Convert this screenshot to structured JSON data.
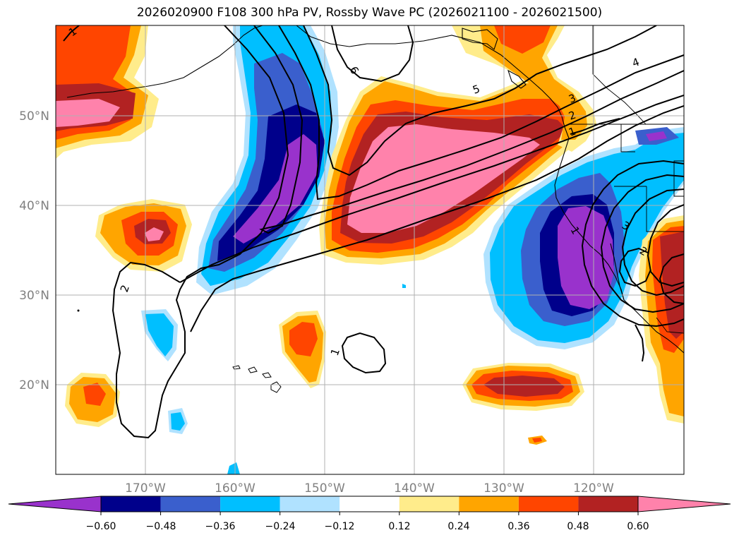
{
  "title": "2026020900 F108 300 hPa PV, Rossby Wave PC (2026021100 - 2026021500)",
  "map": {
    "projection": "plate-carree",
    "lon_range": [
      -180,
      -110
    ],
    "lat_range": [
      10,
      60
    ],
    "grid": true,
    "lon_ticks": [
      {
        "value": -170,
        "label": "170°W"
      },
      {
        "value": -160,
        "label": "160°W"
      },
      {
        "value": -150,
        "label": "150°W"
      },
      {
        "value": -140,
        "label": "140°W"
      },
      {
        "value": -130,
        "label": "130°W"
      },
      {
        "value": -120,
        "label": "120°W"
      }
    ],
    "lat_ticks": [
      {
        "value": 20,
        "label": "20°N"
      },
      {
        "value": 30,
        "label": "30°N"
      },
      {
        "value": 40,
        "label": "40°N"
      },
      {
        "value": 50,
        "label": "50°N"
      }
    ],
    "pv_contour_labels": [
      "1",
      "6",
      "5",
      "4",
      "3",
      "2",
      "1",
      "2",
      "1",
      "3",
      "2",
      "1"
    ]
  },
  "colorbar": {
    "levels": [
      -0.6,
      -0.48,
      -0.36,
      -0.24,
      -0.12,
      0.12,
      0.24,
      0.36,
      0.48,
      0.6
    ],
    "tick_labels": [
      "−0.60",
      "−0.48",
      "−0.36",
      "−0.24",
      "−0.12",
      "0.12",
      "0.24",
      "0.36",
      "0.48",
      "0.60"
    ],
    "colors": [
      "#9932cc",
      "#00008b",
      "#3a5fcd",
      "#00bfff",
      "#b0e2ff",
      "#ffffff",
      "#ffec8b",
      "#ffa500",
      "#ff4500",
      "#b22222",
      "#ff82ab"
    ],
    "extend": "both"
  }
}
